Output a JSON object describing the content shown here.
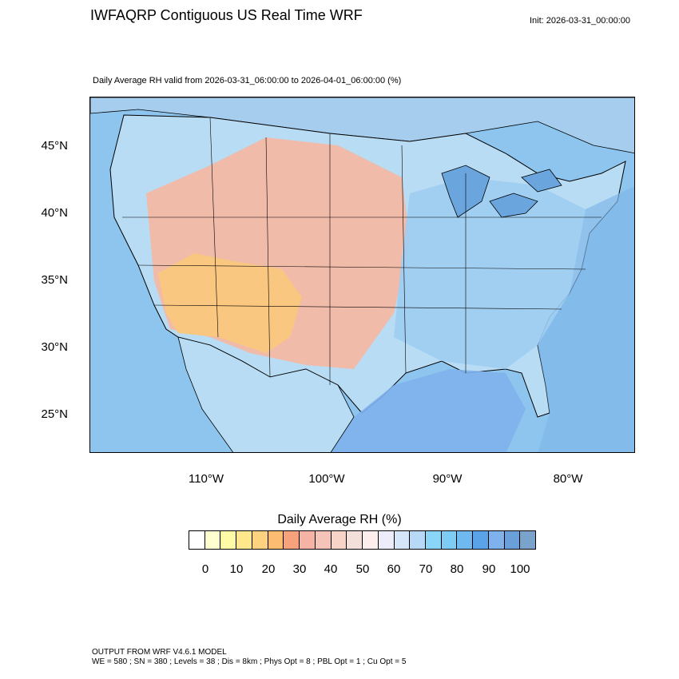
{
  "header": {
    "title": "IWFAQRP Contiguous US Real Time WRF",
    "init": "Init: 2026-03-31_00:00:00"
  },
  "map": {
    "subtitle": "Daily Average RH valid from 2026-03-31_06:00:00 to 2026-04-01_06:00:00   (%)",
    "lat_labels": [
      "45°N",
      "40°N",
      "35°N",
      "30°N",
      "25°N"
    ],
    "lon_labels": [
      "110°W",
      "100°W",
      "90°W",
      "80°W"
    ],
    "colors": {
      "ocean": "#8ec5ee",
      "land_dry": "#f2b4a0",
      "land_very_dry": "#f9c77c",
      "land_moist": "#b8e0f6",
      "land_wet": "#7fb6e8",
      "lake": "#6aa6dd"
    }
  },
  "legend": {
    "title": "Daily Average RH  (%)",
    "labels": [
      "0",
      "10",
      "20",
      "30",
      "40",
      "50",
      "60",
      "70",
      "80",
      "90",
      "100"
    ],
    "colors": [
      "#ffffff",
      "#ffffd0",
      "#fffaa6",
      "#ffe88c",
      "#ffd27f",
      "#fcbd73",
      "#f7a17d",
      "#f4b3a4",
      "#f5c3b7",
      "#f8d3c7",
      "#f4e0da",
      "#fdeeee",
      "#ececfb",
      "#d5e6fb",
      "#b7d8f7",
      "#8ad6f8",
      "#7dccf5",
      "#6eb9f0",
      "#5aa3e8",
      "#7fb1ec",
      "#6a9fd9",
      "#7aa3cc"
    ]
  },
  "footer": {
    "model": "OUTPUT FROM WRF V4.6.1 MODEL",
    "config": "WE = 580 ; SN = 380 ; Levels = 38 ; Dis = 8km ; Phys Opt = 8 ; PBL Opt = 1 ; Cu Opt = 5"
  }
}
